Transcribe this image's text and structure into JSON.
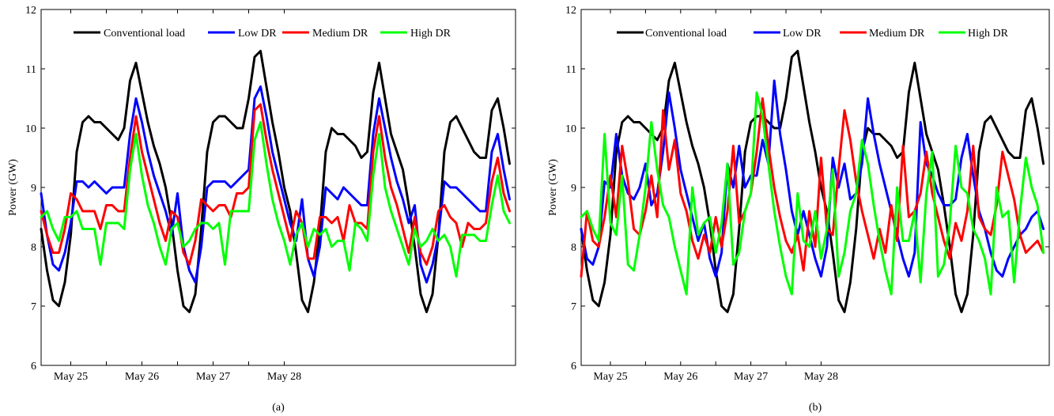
{
  "chart_data": [
    {
      "type": "line",
      "panel_label": "(a)",
      "ylabel": "Power (GW)",
      "xlabel": "",
      "ylim": [
        6,
        12
      ],
      "yticks": [
        6,
        7,
        8,
        9,
        10,
        11,
        12
      ],
      "xlim": [
        0,
        80
      ],
      "xticks": [
        5,
        17,
        29,
        41
      ],
      "xticklabels": [
        "May 25",
        "May 26",
        "May 27",
        "May 28"
      ],
      "xminor": [
        11,
        23,
        35
      ],
      "legend_placement": "top-center",
      "series": [
        {
          "name": "Conventional load",
          "color": "#000000",
          "values": [
            8.3,
            7.6,
            7.1,
            7.0,
            7.4,
            8.2,
            9.6,
            10.1,
            10.2,
            10.1,
            10.1,
            10.0,
            9.9,
            9.8,
            10.0,
            10.8,
            11.1,
            10.6,
            10.1,
            9.7,
            9.4,
            9.0,
            8.4,
            7.6,
            7.0,
            6.9,
            7.2,
            8.3,
            9.6,
            10.1,
            10.2,
            10.2,
            10.1,
            10.0,
            10.0,
            10.5,
            11.2,
            11.3,
            10.7,
            10.1,
            9.6,
            9.0,
            8.6,
            7.9,
            7.1,
            6.9,
            7.4,
            8.3,
            9.6,
            10.0,
            9.9,
            9.9,
            9.8,
            9.7,
            9.5,
            9.6,
            10.6,
            11.1,
            10.5,
            9.9,
            9.6,
            9.3,
            8.7,
            8.0,
            7.2,
            6.9,
            7.2,
            8.2,
            9.6,
            10.1,
            10.2,
            10.0,
            9.8,
            9.6,
            9.5,
            9.5,
            10.3,
            10.5,
            10.0,
            9.4
          ]
        },
        {
          "name": "Low DR",
          "color": "#0000ff",
          "values": [
            8.9,
            8.2,
            7.7,
            7.6,
            7.9,
            8.4,
            9.1,
            9.1,
            9.0,
            9.1,
            9.0,
            8.9,
            9.0,
            9.0,
            9.0,
            9.9,
            10.5,
            10.1,
            9.6,
            9.2,
            8.9,
            8.6,
            8.2,
            8.9,
            8.0,
            7.6,
            7.4,
            8.0,
            9.0,
            9.1,
            9.1,
            9.1,
            9.0,
            9.1,
            9.2,
            9.3,
            10.5,
            10.7,
            10.2,
            9.6,
            9.2,
            8.8,
            8.4,
            8.1,
            8.8,
            7.8,
            7.5,
            8.0,
            9.0,
            8.9,
            8.8,
            9.0,
            8.9,
            8.8,
            8.7,
            8.7,
            9.9,
            10.5,
            10.0,
            9.5,
            9.1,
            8.8,
            8.4,
            8.7,
            7.7,
            7.4,
            7.7,
            8.2,
            9.1,
            9.0,
            9.0,
            8.9,
            8.8,
            8.7,
            8.6,
            8.6,
            9.6,
            9.9,
            9.3,
            8.8
          ]
        },
        {
          "name": "Medium DR",
          "color": "#ff0000",
          "values": [
            8.6,
            8.2,
            7.9,
            7.9,
            8.3,
            8.9,
            8.8,
            8.6,
            8.6,
            8.6,
            8.3,
            8.7,
            8.7,
            8.6,
            8.6,
            9.5,
            10.2,
            9.6,
            9.2,
            8.8,
            8.4,
            8.1,
            8.6,
            8.5,
            7.9,
            7.7,
            8.1,
            8.8,
            8.7,
            8.6,
            8.7,
            8.7,
            8.5,
            8.9,
            8.9,
            9.0,
            10.3,
            10.4,
            9.8,
            9.3,
            8.9,
            8.5,
            8.1,
            8.6,
            8.4,
            7.8,
            7.8,
            8.5,
            8.5,
            8.4,
            8.5,
            8.1,
            8.7,
            8.4,
            8.4,
            8.3,
            9.6,
            10.2,
            9.5,
            9.0,
            8.7,
            8.3,
            7.9,
            8.5,
            7.9,
            7.7,
            8.0,
            8.6,
            8.7,
            8.5,
            8.4,
            8.0,
            8.4,
            8.3,
            8.3,
            8.4,
            9.1,
            9.5,
            8.9,
            8.6
          ]
        },
        {
          "name": "High DR",
          "color": "#00ff00",
          "values": [
            8.5,
            8.6,
            8.3,
            8.1,
            8.5,
            8.5,
            8.6,
            8.3,
            8.3,
            8.3,
            7.7,
            8.4,
            8.4,
            8.4,
            8.3,
            9.3,
            9.9,
            9.2,
            8.7,
            8.4,
            8.0,
            7.7,
            8.3,
            8.4,
            8.0,
            8.1,
            8.3,
            8.4,
            8.4,
            8.3,
            8.4,
            7.7,
            8.6,
            8.6,
            8.6,
            8.6,
            9.8,
            10.1,
            9.4,
            8.8,
            8.4,
            8.1,
            7.7,
            8.2,
            8.4,
            8.0,
            8.3,
            8.2,
            8.3,
            8.0,
            8.1,
            8.1,
            7.6,
            8.4,
            8.3,
            8.1,
            9.2,
            9.9,
            9.0,
            8.6,
            8.3,
            8.0,
            7.7,
            8.3,
            8.0,
            8.1,
            8.3,
            8.1,
            8.2,
            8.0,
            7.5,
            8.2,
            8.2,
            8.2,
            8.1,
            8.1,
            8.7,
            9.2,
            8.6,
            8.4
          ]
        }
      ]
    },
    {
      "type": "line",
      "panel_label": "(b)",
      "ylabel": "Power (GW)",
      "xlabel": "",
      "ylim": [
        6,
        12
      ],
      "yticks": [
        6,
        7,
        8,
        9,
        10,
        11,
        12
      ],
      "xlim": [
        0,
        80
      ],
      "xticks": [
        5,
        17,
        29,
        41
      ],
      "xticklabels": [
        "May 25",
        "May 26",
        "May 27",
        "May 28"
      ],
      "xminor": [
        11,
        23,
        35
      ],
      "legend_placement": "top-center",
      "series": [
        {
          "name": "Conventional load",
          "color": "#000000",
          "values": [
            8.3,
            7.6,
            7.1,
            7.0,
            7.4,
            8.2,
            9.6,
            10.1,
            10.2,
            10.1,
            10.1,
            10.0,
            9.9,
            9.8,
            10.0,
            10.8,
            11.1,
            10.6,
            10.1,
            9.7,
            9.4,
            9.0,
            8.4,
            7.6,
            7.0,
            6.9,
            7.2,
            8.3,
            9.6,
            10.1,
            10.2,
            10.2,
            10.1,
            10.0,
            10.0,
            10.5,
            11.2,
            11.3,
            10.7,
            10.1,
            9.6,
            9.0,
            8.6,
            7.9,
            7.1,
            6.9,
            7.4,
            8.3,
            9.6,
            10.0,
            9.9,
            9.9,
            9.8,
            9.7,
            9.5,
            9.6,
            10.6,
            11.1,
            10.5,
            9.9,
            9.6,
            9.3,
            8.7,
            8.0,
            7.2,
            6.9,
            7.2,
            8.2,
            9.6,
            10.1,
            10.2,
            10.0,
            9.8,
            9.6,
            9.5,
            9.5,
            10.3,
            10.5,
            10.0,
            9.4
          ]
        },
        {
          "name": "Low DR",
          "color": "#0000ff",
          "values": [
            8.3,
            7.8,
            7.7,
            8.0,
            9.1,
            9.0,
            9.9,
            9.2,
            8.9,
            8.8,
            9.0,
            9.4,
            8.7,
            8.9,
            9.6,
            10.6,
            10.0,
            9.3,
            8.9,
            8.5,
            8.1,
            8.4,
            7.8,
            7.5,
            7.9,
            9.4,
            9.0,
            9.7,
            9.0,
            9.2,
            9.2,
            9.8,
            9.4,
            10.8,
            9.9,
            9.3,
            8.6,
            8.2,
            8.6,
            8.2,
            7.8,
            7.5,
            8.0,
            9.5,
            9.0,
            9.4,
            8.8,
            8.9,
            9.4,
            10.5,
            9.9,
            9.4,
            9.0,
            8.6,
            8.2,
            7.8,
            7.5,
            7.9,
            10.1,
            9.4,
            9.2,
            8.9,
            8.7,
            8.7,
            8.8,
            9.5,
            9.9,
            9.2,
            8.6,
            8.3,
            7.9,
            7.6,
            7.5,
            7.8,
            8.0,
            8.2,
            8.3,
            8.5,
            8.6,
            8.3
          ]
        },
        {
          "name": "Medium DR",
          "color": "#ff0000",
          "values": [
            7.5,
            8.6,
            8.1,
            8.0,
            8.5,
            9.2,
            8.5,
            9.7,
            9.1,
            8.3,
            8.2,
            8.6,
            9.2,
            8.5,
            10.3,
            9.3,
            9.8,
            8.9,
            8.6,
            8.1,
            7.8,
            8.2,
            7.9,
            8.5,
            8.0,
            8.6,
            9.7,
            8.4,
            8.6,
            8.9,
            9.6,
            10.5,
            9.7,
            9.0,
            8.5,
            8.1,
            7.9,
            8.2,
            7.6,
            8.6,
            8.0,
            9.5,
            8.3,
            8.2,
            9.3,
            10.3,
            9.8,
            9.1,
            8.6,
            8.2,
            7.8,
            8.3,
            7.9,
            8.7,
            8.1,
            9.7,
            8.5,
            8.6,
            8.9,
            9.6,
            8.9,
            8.5,
            8.1,
            7.8,
            8.4,
            8.1,
            8.6,
            9.7,
            8.5,
            8.3,
            8.2,
            8.7,
            9.6,
            9.2,
            8.8,
            8.2,
            7.9,
            8.0,
            8.1,
            7.9
          ]
        },
        {
          "name": "High DR",
          "color": "#00ff00",
          "values": [
            8.5,
            8.6,
            8.3,
            8.1,
            9.9,
            8.4,
            8.2,
            9.2,
            7.7,
            7.6,
            8.2,
            9.0,
            10.1,
            9.3,
            8.7,
            8.5,
            8.0,
            7.6,
            7.2,
            9.0,
            8.2,
            8.4,
            8.5,
            7.9,
            8.4,
            9.4,
            7.7,
            7.9,
            8.6,
            8.9,
            10.6,
            10.2,
            9.4,
            8.6,
            8.0,
            7.5,
            7.2,
            8.9,
            8.1,
            8.0,
            8.6,
            7.8,
            8.3,
            9.3,
            7.5,
            7.9,
            8.6,
            8.9,
            9.8,
            9.4,
            8.7,
            8.1,
            7.6,
            7.2,
            9.0,
            8.1,
            8.1,
            8.6,
            7.4,
            8.9,
            9.6,
            7.5,
            7.7,
            8.4,
            9.7,
            9.0,
            8.9,
            8.3,
            8.1,
            7.8,
            7.2,
            9.0,
            8.5,
            8.6,
            7.4,
            8.6,
            9.5,
            9.0,
            8.7,
            7.9
          ]
        }
      ]
    }
  ]
}
